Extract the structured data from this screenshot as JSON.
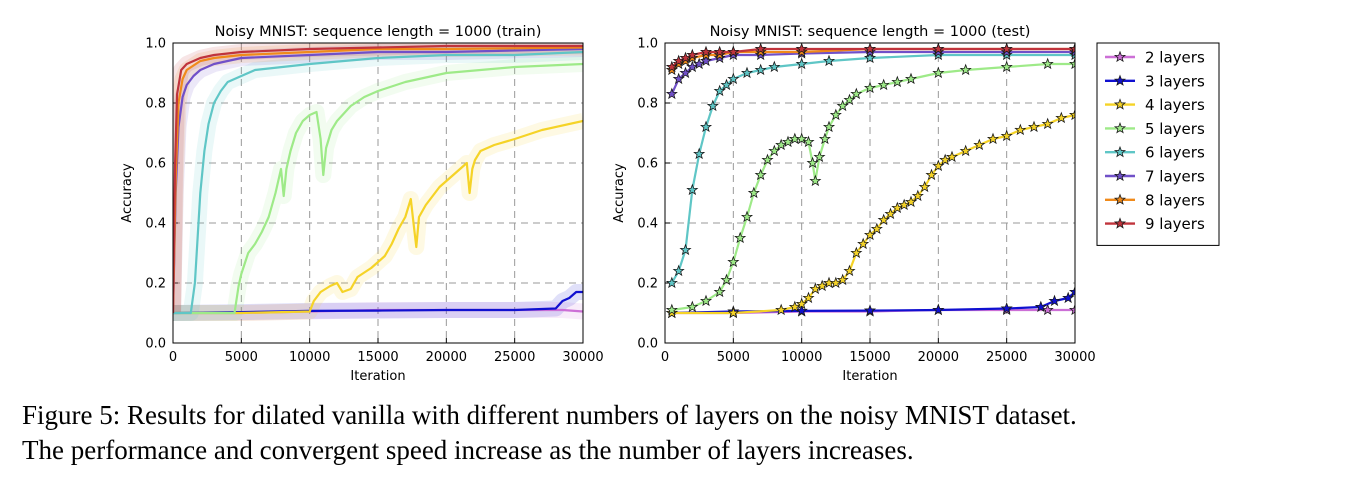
{
  "chart_data": [
    {
      "type": "line",
      "title": "Noisy MNIST: sequence length = 1000 (train)",
      "xlabel": "Iteration",
      "ylabel": "Accuracy",
      "xlim": [
        0,
        30000
      ],
      "ylim": [
        0.0,
        1.0
      ],
      "xticks": [
        "0",
        "5000",
        "10000",
        "15000",
        "20000",
        "25000",
        "30000"
      ],
      "yticks": [
        "0.0",
        "0.2",
        "0.4",
        "0.6",
        "0.8",
        "1.0"
      ],
      "grid": true,
      "series": [
        {
          "color": "#cc6fd6",
          "x": [
            0,
            5000,
            10000,
            15000,
            20000,
            25000,
            28000,
            28500,
            30000
          ],
          "y": [
            0.1,
            0.1,
            0.105,
            0.11,
            0.11,
            0.11,
            0.11,
            0.11,
            0.105
          ]
        },
        {
          "color": "#1010d0",
          "x": [
            0,
            5000,
            10000,
            15000,
            20000,
            25000,
            28000,
            28500,
            29000,
            29500,
            30000
          ],
          "y": [
            0.1,
            0.103,
            0.107,
            0.108,
            0.11,
            0.11,
            0.115,
            0.14,
            0.15,
            0.17,
            0.17
          ]
        },
        {
          "color": "#f5d327",
          "x": [
            0,
            5000,
            10000,
            10300,
            10800,
            11500,
            12000,
            12400,
            13000,
            13500,
            14500,
            15500,
            16000,
            16500,
            17000,
            17400,
            17600,
            17800,
            18000,
            18500,
            19500,
            20500,
            21500,
            21700,
            21900,
            22100,
            22500,
            23500,
            25000,
            27000,
            30000
          ],
          "y": [
            0.1,
            0.1,
            0.105,
            0.14,
            0.17,
            0.19,
            0.2,
            0.17,
            0.18,
            0.22,
            0.25,
            0.29,
            0.33,
            0.38,
            0.42,
            0.48,
            0.4,
            0.32,
            0.42,
            0.46,
            0.52,
            0.56,
            0.6,
            0.5,
            0.58,
            0.61,
            0.64,
            0.66,
            0.68,
            0.71,
            0.74
          ]
        },
        {
          "color": "#9eea88",
          "x": [
            0,
            4500,
            4800,
            5000,
            5500,
            6000,
            6500,
            7000,
            7500,
            7900,
            8100,
            8300,
            8600,
            9000,
            9500,
            10000,
            10500,
            10800,
            11000,
            11200,
            11600,
            12000,
            13000,
            14000,
            15000,
            17000,
            20000,
            25000,
            30000
          ],
          "y": [
            0.1,
            0.1,
            0.19,
            0.23,
            0.3,
            0.33,
            0.37,
            0.42,
            0.5,
            0.58,
            0.49,
            0.58,
            0.64,
            0.7,
            0.74,
            0.76,
            0.77,
            0.68,
            0.56,
            0.65,
            0.71,
            0.74,
            0.79,
            0.82,
            0.84,
            0.87,
            0.9,
            0.92,
            0.93
          ]
        },
        {
          "color": "#5fc6c6",
          "x": [
            0,
            1300,
            1600,
            1800,
            2000,
            2300,
            2600,
            3000,
            3500,
            4000,
            5000,
            6000,
            8000,
            10000,
            15000,
            20000,
            25000,
            30000
          ],
          "y": [
            0.1,
            0.1,
            0.2,
            0.35,
            0.5,
            0.64,
            0.73,
            0.8,
            0.84,
            0.87,
            0.89,
            0.91,
            0.92,
            0.93,
            0.95,
            0.96,
            0.96,
            0.97
          ]
        },
        {
          "color": "#7050c8",
          "x": [
            0,
            200,
            400,
            700,
            1000,
            1500,
            2000,
            3000,
            5000,
            10000,
            15000,
            20000,
            30000
          ],
          "y": [
            0.1,
            0.5,
            0.72,
            0.82,
            0.86,
            0.89,
            0.91,
            0.93,
            0.95,
            0.96,
            0.97,
            0.97,
            0.98
          ]
        },
        {
          "color": "#f08a1a",
          "x": [
            0,
            200,
            400,
            700,
            1000,
            2000,
            3000,
            5000,
            10000,
            15000,
            20000,
            30000
          ],
          "y": [
            0.1,
            0.55,
            0.8,
            0.88,
            0.91,
            0.94,
            0.95,
            0.96,
            0.97,
            0.98,
            0.98,
            0.985
          ]
        },
        {
          "color": "#c0343c",
          "x": [
            0,
            150,
            300,
            600,
            1000,
            2000,
            3000,
            5000,
            10000,
            15000,
            20000,
            30000
          ],
          "y": [
            0.1,
            0.6,
            0.83,
            0.91,
            0.93,
            0.95,
            0.96,
            0.97,
            0.98,
            0.985,
            0.99,
            0.99
          ]
        }
      ]
    },
    {
      "type": "line",
      "title": "Noisy MNIST: sequence length = 1000 (test)",
      "xlabel": "Iteration",
      "ylabel": "Accuracy",
      "xlim": [
        0,
        30000
      ],
      "ylim": [
        0.0,
        1.0
      ],
      "xticks": [
        "0",
        "5000",
        "10000",
        "15000",
        "20000",
        "25000",
        "30000"
      ],
      "yticks": [
        "0.0",
        "0.2",
        "0.4",
        "0.6",
        "0.8",
        "1.0"
      ],
      "grid": true,
      "legend_position": "outside-right",
      "series": [
        {
          "name": "2 layers",
          "color": "#cc6fd6",
          "x": [
            500,
            5000,
            10000,
            15000,
            20000,
            25000,
            28000,
            30000
          ],
          "y": [
            0.1,
            0.1,
            0.105,
            0.105,
            0.11,
            0.11,
            0.11,
            0.11
          ]
        },
        {
          "name": "3 layers",
          "color": "#1010d0",
          "x": [
            500,
            5000,
            10000,
            15000,
            20000,
            25000,
            27500,
            28500,
            29500,
            30000
          ],
          "y": [
            0.1,
            0.105,
            0.107,
            0.108,
            0.11,
            0.115,
            0.12,
            0.14,
            0.15,
            0.17
          ]
        },
        {
          "name": "4 layers",
          "color": "#f5d327",
          "x": [
            500,
            5000,
            8500,
            9500,
            10000,
            10500,
            11000,
            11500,
            12000,
            12500,
            13000,
            13500,
            14000,
            14500,
            15000,
            15500,
            16000,
            16500,
            17000,
            17500,
            18000,
            18500,
            19000,
            19500,
            20000,
            20500,
            21000,
            22000,
            23000,
            24000,
            25000,
            26000,
            27000,
            28000,
            29000,
            30000
          ],
          "y": [
            0.1,
            0.1,
            0.11,
            0.12,
            0.13,
            0.15,
            0.18,
            0.19,
            0.2,
            0.2,
            0.21,
            0.24,
            0.3,
            0.33,
            0.36,
            0.38,
            0.41,
            0.43,
            0.45,
            0.46,
            0.47,
            0.49,
            0.52,
            0.56,
            0.59,
            0.61,
            0.62,
            0.64,
            0.66,
            0.68,
            0.69,
            0.71,
            0.72,
            0.73,
            0.75,
            0.76
          ]
        },
        {
          "name": "5 layers",
          "color": "#9eea88",
          "x": [
            500,
            2000,
            3000,
            4000,
            4500,
            5000,
            5500,
            6000,
            6500,
            7000,
            7500,
            8000,
            8500,
            9000,
            9500,
            10000,
            10500,
            10800,
            11000,
            11300,
            11700,
            12000,
            12500,
            13000,
            13500,
            14000,
            15000,
            16000,
            17000,
            18000,
            20000,
            22000,
            25000,
            28000,
            30000
          ],
          "y": [
            0.11,
            0.12,
            0.14,
            0.17,
            0.21,
            0.27,
            0.35,
            0.42,
            0.5,
            0.56,
            0.61,
            0.64,
            0.66,
            0.67,
            0.68,
            0.68,
            0.67,
            0.6,
            0.54,
            0.62,
            0.68,
            0.72,
            0.76,
            0.79,
            0.81,
            0.83,
            0.85,
            0.86,
            0.87,
            0.88,
            0.9,
            0.91,
            0.92,
            0.93,
            0.93
          ]
        },
        {
          "name": "6 layers",
          "color": "#5fc6c6",
          "x": [
            500,
            1000,
            1500,
            2000,
            2500,
            3000,
            3500,
            4000,
            4500,
            5000,
            6000,
            7000,
            8000,
            10000,
            12000,
            15000,
            20000,
            25000,
            30000
          ],
          "y": [
            0.2,
            0.24,
            0.31,
            0.51,
            0.63,
            0.72,
            0.79,
            0.84,
            0.86,
            0.88,
            0.9,
            0.91,
            0.92,
            0.93,
            0.94,
            0.95,
            0.96,
            0.96,
            0.96
          ]
        },
        {
          "name": "7 layers",
          "color": "#7050c8",
          "x": [
            500,
            1000,
            1500,
            2000,
            2500,
            3000,
            4000,
            5000,
            7000,
            10000,
            15000,
            20000,
            25000,
            30000
          ],
          "y": [
            0.83,
            0.88,
            0.9,
            0.92,
            0.93,
            0.94,
            0.95,
            0.96,
            0.96,
            0.965,
            0.97,
            0.97,
            0.97,
            0.97
          ]
        },
        {
          "name": "8 layers",
          "color": "#f08a1a",
          "x": [
            500,
            1000,
            1500,
            2000,
            3000,
            4000,
            5000,
            7000,
            10000,
            15000,
            20000,
            25000,
            30000
          ],
          "y": [
            0.91,
            0.93,
            0.94,
            0.95,
            0.96,
            0.96,
            0.97,
            0.97,
            0.97,
            0.98,
            0.98,
            0.98,
            0.98
          ]
        },
        {
          "name": "9 layers",
          "color": "#c0343c",
          "x": [
            500,
            1000,
            1500,
            2000,
            3000,
            4000,
            5000,
            7000,
            10000,
            15000,
            20000,
            25000,
            30000
          ],
          "y": [
            0.92,
            0.94,
            0.95,
            0.96,
            0.97,
            0.97,
            0.97,
            0.98,
            0.98,
            0.98,
            0.98,
            0.98,
            0.98
          ]
        }
      ]
    }
  ],
  "caption": {
    "line1": "Figure 5: Results for dilated vanilla with different numbers of layers on the noisy MNIST dataset.",
    "line2": "The performance and convergent speed increase as the number of layers increases."
  }
}
